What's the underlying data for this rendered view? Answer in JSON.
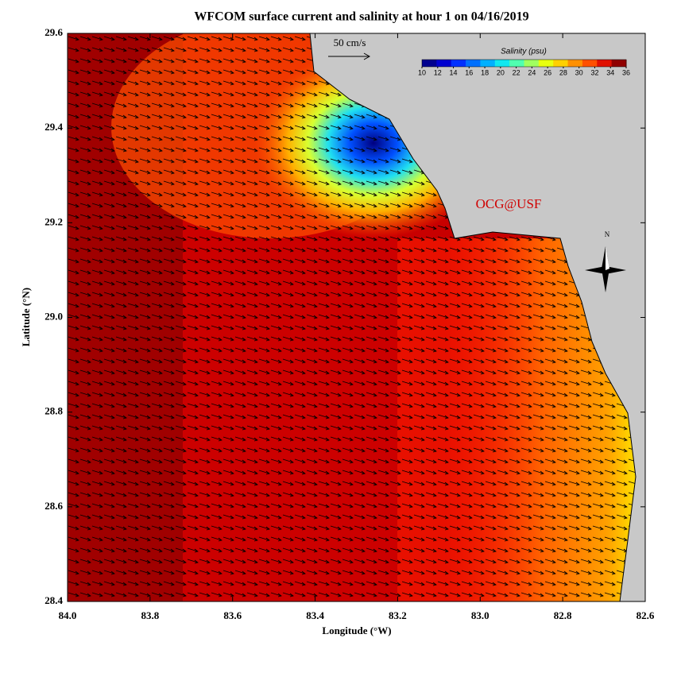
{
  "title": "WFCOM surface current and salinity at hour 1 on 04/16/2019",
  "x_axis": {
    "label": "Longitude (°W)",
    "lim": [
      84.0,
      82.6
    ],
    "ticks": [
      {
        "value": 84,
        "label": "84.0"
      },
      83.8,
      83.6,
      83.4,
      83.2,
      {
        "value": 83,
        "label": "83.0"
      },
      82.8,
      82.6
    ]
  },
  "y_axis": {
    "label": "Latitude (°N)",
    "lim": [
      28.4,
      29.6
    ],
    "ticks": [
      28.4,
      28.6,
      28.8,
      {
        "value": 29,
        "label": "29.0"
      },
      29.2,
      29.4,
      29.6
    ]
  },
  "colorbar": {
    "title": "Salinity (psu)",
    "lim": [
      10,
      36
    ],
    "ticks": [
      10,
      12,
      14,
      16,
      18,
      20,
      22,
      24,
      26,
      28,
      30,
      32,
      34,
      36
    ],
    "colors": [
      "#00008f",
      "#0000d0",
      "#0030ff",
      "#0070ff",
      "#00b0ff",
      "#10e8f0",
      "#50ffb0",
      "#a0ff60",
      "#e8ff10",
      "#ffd000",
      "#ff9000",
      "#ff5000",
      "#e01000",
      "#900000"
    ]
  },
  "scale_label": "50 cm/s",
  "watermark": "OCG@USF",
  "north_label": "N"
}
